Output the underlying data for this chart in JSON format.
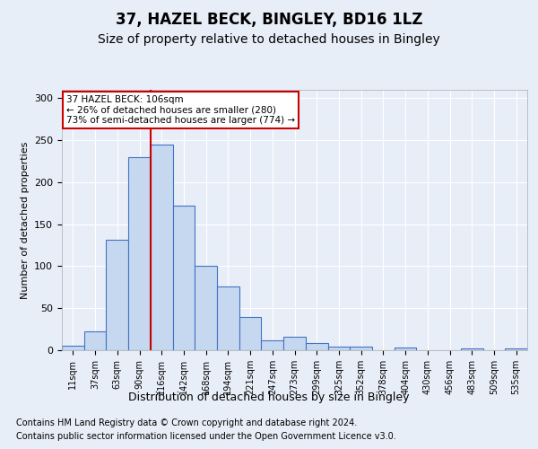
{
  "title1": "37, HAZEL BECK, BINGLEY, BD16 1LZ",
  "title2": "Size of property relative to detached houses in Bingley",
  "xlabel": "Distribution of detached houses by size in Bingley",
  "ylabel": "Number of detached properties",
  "categories": [
    "11sqm",
    "37sqm",
    "63sqm",
    "90sqm",
    "116sqm",
    "142sqm",
    "168sqm",
    "194sqm",
    "221sqm",
    "247sqm",
    "273sqm",
    "299sqm",
    "325sqm",
    "352sqm",
    "378sqm",
    "404sqm",
    "430sqm",
    "456sqm",
    "483sqm",
    "509sqm",
    "535sqm"
  ],
  "values": [
    5,
    22,
    131,
    230,
    245,
    172,
    101,
    76,
    40,
    12,
    16,
    9,
    4,
    4,
    0,
    3,
    0,
    0,
    2,
    0,
    2
  ],
  "bar_color": "#c5d8f0",
  "bar_edge_color": "#4472c4",
  "bar_linewidth": 0.8,
  "vline_color": "#cc0000",
  "annotation_text": "37 HAZEL BECK: 106sqm\n← 26% of detached houses are smaller (280)\n73% of semi-detached houses are larger (774) →",
  "annotation_box_color": "#ffffff",
  "annotation_box_edge": "#cc0000",
  "ylim": [
    0,
    310
  ],
  "background_color": "#e8eef8",
  "plot_bg_color": "#e8eef8",
  "footer1": "Contains HM Land Registry data © Crown copyright and database right 2024.",
  "footer2": "Contains public sector information licensed under the Open Government Licence v3.0.",
  "title1_fontsize": 12,
  "title2_fontsize": 10,
  "xlabel_fontsize": 9,
  "ylabel_fontsize": 8,
  "tick_fontsize": 7,
  "footer_fontsize": 7
}
